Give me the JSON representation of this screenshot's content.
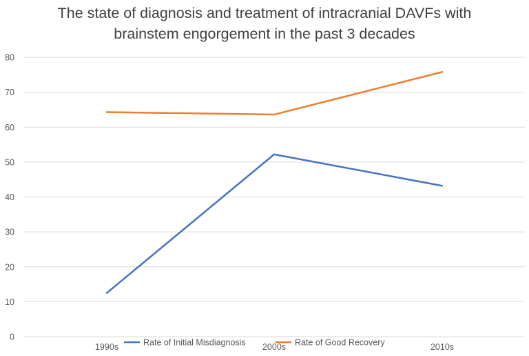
{
  "chart_data": {
    "type": "line",
    "title_lines": [
      "The state of diagnosis and treatment of intracranial DAVFs with",
      "brainstem engorgement in the past 3 decades"
    ],
    "categories": [
      "1990s",
      "2000s",
      "2010s"
    ],
    "series": [
      {
        "name": "Rate of Initial Misdiagnosis",
        "values": [
          12.5,
          52.2,
          43.2
        ],
        "color": "#4472C4"
      },
      {
        "name": "Rate of Good Recovery",
        "values": [
          64.3,
          63.6,
          75.8
        ],
        "color": "#ED7D31"
      }
    ],
    "yticks": [
      0,
      10,
      20,
      30,
      40,
      50,
      60,
      70,
      80
    ],
    "ylim": [
      0,
      80
    ],
    "grid": true,
    "legend_position": "bottom",
    "gridline_color": "#d9d9d9",
    "xlabel": "",
    "ylabel": ""
  }
}
